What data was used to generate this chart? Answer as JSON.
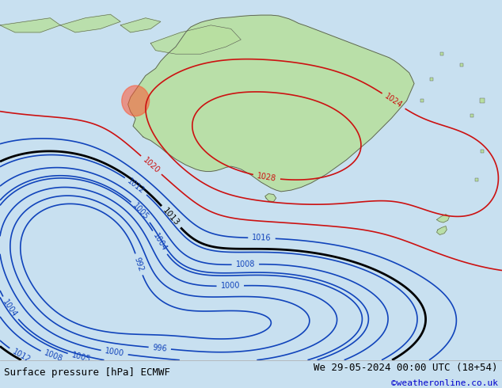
{
  "title_left": "Surface pressure [hPa] ECMWF",
  "title_right": "We 29-05-2024 00:00 UTC (18+54)",
  "copyright": "©weatheronline.co.uk",
  "bg_color": "#c8e0f0",
  "land_color": "#b8dfa0",
  "fig_width": 6.34,
  "fig_height": 4.9,
  "dpi": 100,
  "bottom_bar_color": "#ffffff",
  "bottom_bar_height": 0.072,
  "title_fontsize": 9,
  "copyright_fontsize": 8,
  "copyright_color": "#0000cc",
  "isobar_blue": [
    992,
    996,
    1000,
    1004,
    1005,
    1008,
    1012,
    1016
  ],
  "isobar_black": [
    1013
  ],
  "isobar_red": [
    1020,
    1024,
    1028
  ],
  "color_blue": "#1144bb",
  "color_black": "#000000",
  "color_red": "#cc1111"
}
